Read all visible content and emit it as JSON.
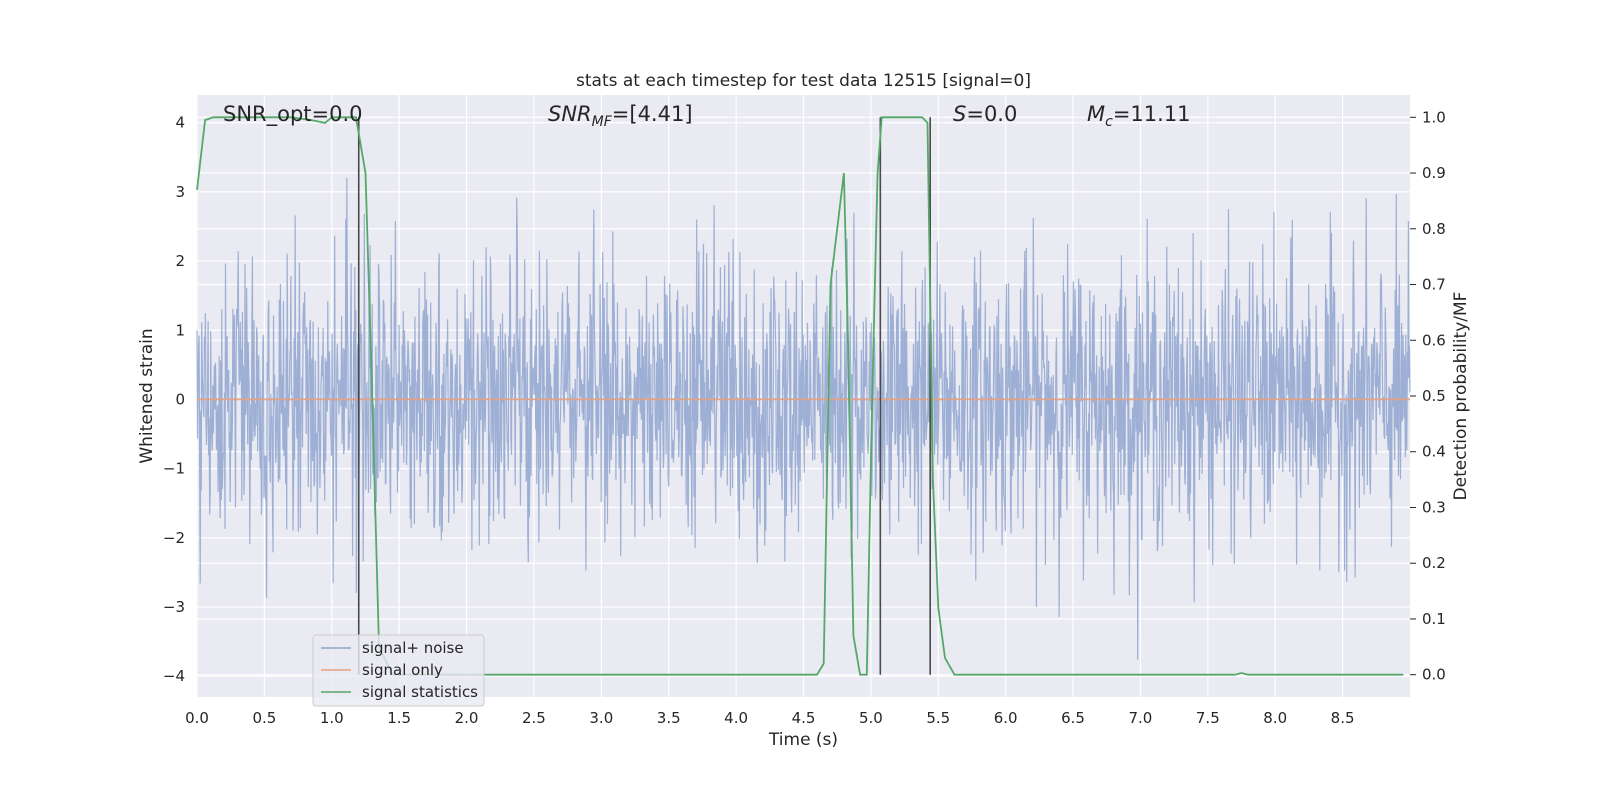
{
  "chart_data": {
    "type": "line",
    "title": "stats at each timestep for test data 12515 [signal=0]",
    "xlabel": "Time (s)",
    "ylabel": "Whitened strain",
    "y2label": "Detection probability/MF",
    "xlim": [
      0.0,
      9.0
    ],
    "ylim": [
      -4.3,
      4.4
    ],
    "y2lim": [
      -0.04,
      1.04
    ],
    "x_ticks": [
      0.0,
      0.5,
      1.0,
      1.5,
      2.0,
      2.5,
      3.0,
      3.5,
      4.0,
      4.5,
      5.0,
      5.5,
      6.0,
      6.5,
      7.0,
      7.5,
      8.0,
      8.5
    ],
    "x_tick_labels": [
      "0.0",
      "0.5",
      "1.0",
      "1.5",
      "2.0",
      "2.5",
      "3.0",
      "3.5",
      "4.0",
      "4.5",
      "5.0",
      "5.5",
      "6.0",
      "6.5",
      "7.0",
      "7.5",
      "8.0",
      "8.5"
    ],
    "y_ticks": [
      4,
      3,
      2,
      1,
      0,
      -1,
      -2,
      -3,
      -4
    ],
    "y_tick_labels": [
      "4",
      "3",
      "2",
      "1",
      "0",
      "−1",
      "−2",
      "−3",
      "−4"
    ],
    "y2_ticks": [
      1.0,
      0.9,
      0.8,
      0.7,
      0.6,
      0.5,
      0.4,
      0.3,
      0.2,
      0.1,
      0.0
    ],
    "y2_tick_labels": [
      "1.0",
      "0.9",
      "0.8",
      "0.7",
      "0.6",
      "0.5",
      "0.4",
      "0.3",
      "0.2",
      "0.1",
      "0.0"
    ],
    "grid": true,
    "legend_position": "lower-left",
    "annotations": {
      "snr_opt": "SNR_opt=0.0",
      "snr_mf_pre": "SNR",
      "snr_mf_sub": "MF",
      "snr_mf_post": "=[4.41]",
      "s_sym": "S",
      "s_val": "=0.0",
      "mc_sym": "M",
      "mc_sub": "c",
      "mc_val": "=11.11"
    },
    "vertical_lines_x": [
      1.2,
      5.07,
      5.44
    ],
    "series": [
      {
        "name": "signal+ noise",
        "color": "#8fa5cf",
        "noise_sigma": 1.0,
        "duration": 9.0,
        "samples": 2300
      },
      {
        "name": "signal only",
        "color": "#e8a07e",
        "x": [
          0.0,
          9.0
        ],
        "y": [
          0.0,
          0.0
        ]
      },
      {
        "name": "signal statistics",
        "color": "#55a868",
        "x": [
          0.0,
          0.06,
          0.12,
          0.3,
          0.5,
          0.7,
          0.85,
          0.95,
          1.0,
          1.18,
          1.25,
          1.3,
          1.35,
          1.45,
          1.6,
          1.9,
          2.0,
          2.5,
          3.0,
          4.0,
          4.5,
          4.6,
          4.65,
          4.7,
          4.75,
          4.8,
          4.83,
          4.87,
          4.92,
          4.97,
          5.01,
          5.05,
          5.08,
          5.12,
          5.2,
          5.3,
          5.38,
          5.42,
          5.46,
          5.5,
          5.55,
          5.62,
          5.7,
          6.0,
          7.0,
          7.7,
          7.75,
          7.8,
          8.0,
          8.5,
          8.95
        ],
        "y": [
          0.87,
          0.995,
          1.0,
          1.0,
          1.0,
          1.0,
          0.995,
          0.99,
          1.0,
          1.0,
          0.9,
          0.5,
          0.05,
          0.0,
          0.0,
          0.0,
          0.0,
          0.0,
          0.0,
          0.0,
          0.0,
          0.0,
          0.02,
          0.7,
          0.8,
          0.9,
          0.6,
          0.07,
          0.0,
          0.0,
          0.5,
          0.9,
          1.0,
          1.0,
          1.0,
          1.0,
          1.0,
          0.99,
          0.35,
          0.12,
          0.03,
          0.0,
          0.0,
          0.0,
          0.0,
          0.0,
          0.003,
          0.0,
          0.0,
          0.0,
          0.0
        ]
      }
    ]
  }
}
